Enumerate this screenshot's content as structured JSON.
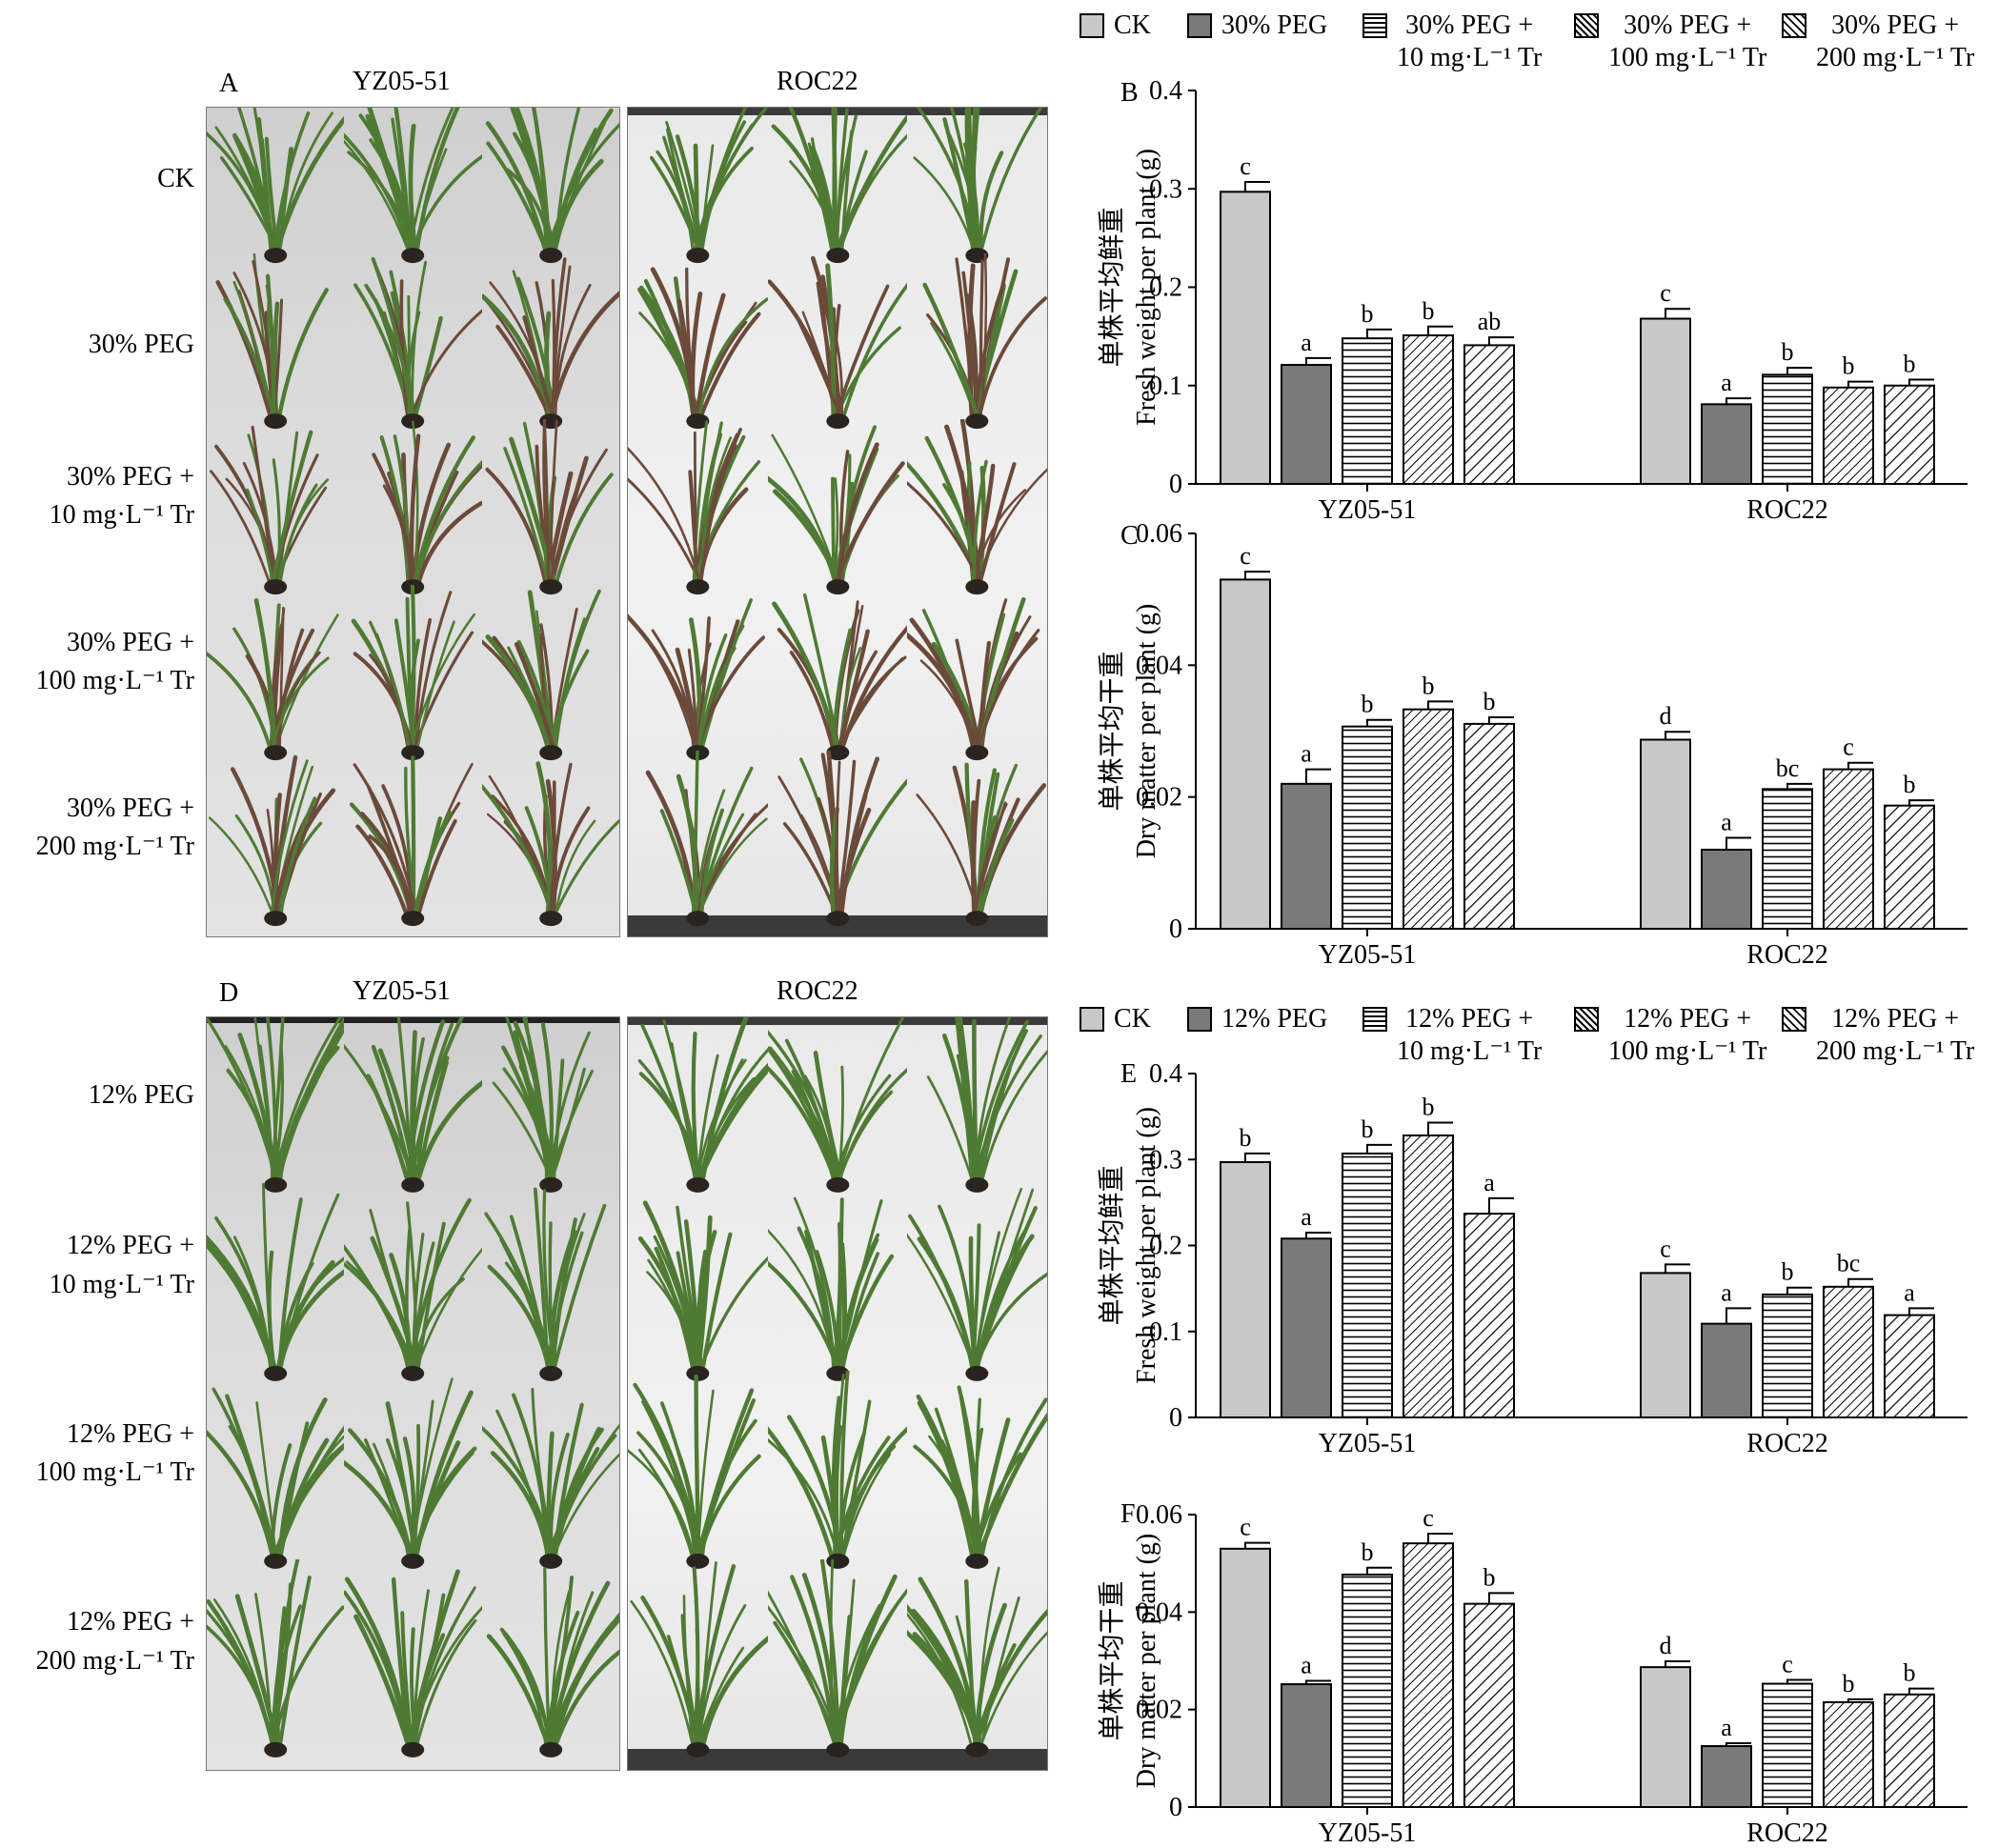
{
  "photos": {
    "top": {
      "panel_letter": "A",
      "col_heads": [
        "YZ05-51",
        "ROC22"
      ],
      "row_labels": [
        [
          "CK"
        ],
        [
          "30% PEG"
        ],
        [
          "30% PEG +",
          "10 mg·L⁻¹ Tr"
        ],
        [
          "30% PEG +",
          "100 mg·L⁻¹ Tr"
        ],
        [
          "30% PEG +",
          "200 mg·L⁻¹ Tr"
        ]
      ]
    },
    "bottom": {
      "panel_letter": "D",
      "col_heads": [
        "YZ05-51",
        "ROC22"
      ],
      "row_labels": [
        [
          "12% PEG"
        ],
        [
          "12% PEG +",
          "10 mg·L⁻¹ Tr"
        ],
        [
          "12% PEG +",
          "100 mg·L⁻¹ Tr"
        ],
        [
          "12% PEG +",
          "200 mg·L⁻¹ Tr"
        ]
      ]
    }
  },
  "legends": {
    "top": [
      [
        "CK"
      ],
      [
        "30% PEG"
      ],
      [
        "30% PEG +",
        "10 mg·L⁻¹ Tr"
      ],
      [
        "30% PEG +",
        "100 mg·L⁻¹ Tr"
      ],
      [
        "30% PEG +",
        "200 mg·L⁻¹ Tr"
      ]
    ],
    "bottom": [
      [
        "CK"
      ],
      [
        "12% PEG"
      ],
      [
        "12% PEG +",
        "10 mg·L⁻¹ Tr"
      ],
      [
        "12% PEG +",
        "100 mg·L⁻¹ Tr"
      ],
      [
        "12% PEG +",
        "200 mg·L⁻¹ Tr"
      ]
    ]
  },
  "colors": {
    "ck": "#c8c8c8",
    "peg": "#7a7a7a",
    "pattern": "#ffffff",
    "plant_green": "#4f7a34",
    "plant_dark": "#6b4a3a"
  },
  "chart_data": [
    {
      "panel": "B",
      "type": "bar",
      "categories": [
        "YZ05-51",
        "ROC22"
      ],
      "ylabel_cn": "单株平均鲜重",
      "ylabel_en": "Fresh weight per plant (g)",
      "ylim": [
        0,
        0.4
      ],
      "yticks": [
        "0",
        "0.1",
        "0.2",
        "0.3",
        "0.4"
      ],
      "series": [
        {
          "name": "CK",
          "values": [
            0.297,
            0.168
          ],
          "errors": [
            0.01,
            0.01
          ],
          "letters": [
            "c",
            "c"
          ]
        },
        {
          "name": "30% PEG",
          "values": [
            0.121,
            0.081
          ],
          "errors": [
            0.007,
            0.006
          ],
          "letters": [
            "a",
            "a"
          ]
        },
        {
          "name": "30% PEG + 10 mg·L⁻¹ Tr",
          "values": [
            0.148,
            0.111
          ],
          "errors": [
            0.009,
            0.007
          ],
          "letters": [
            "b",
            "b"
          ]
        },
        {
          "name": "30% PEG + 100 mg·L⁻¹ Tr",
          "values": [
            0.151,
            0.098
          ],
          "errors": [
            0.009,
            0.006
          ],
          "letters": [
            "b",
            "b"
          ]
        },
        {
          "name": "30% PEG + 200 mg·L⁻¹ Tr",
          "values": [
            0.141,
            0.1
          ],
          "errors": [
            0.008,
            0.006
          ],
          "letters": [
            "ab",
            "b"
          ]
        }
      ]
    },
    {
      "panel": "C",
      "type": "bar",
      "categories": [
        "YZ05-51",
        "ROC22"
      ],
      "ylabel_cn": "单株平均干重",
      "ylabel_en": "Dry matter per plant (g)",
      "ylim": [
        0,
        0.06
      ],
      "yticks": [
        "0",
        "0.02",
        "0.04",
        "0.06"
      ],
      "series": [
        {
          "name": "CK",
          "values": [
            0.053,
            0.0287
          ],
          "errors": [
            0.0012,
            0.0012
          ],
          "letters": [
            "c",
            "d"
          ]
        },
        {
          "name": "30% PEG",
          "values": [
            0.022,
            0.012
          ],
          "errors": [
            0.0022,
            0.0018
          ],
          "letters": [
            "a",
            "a"
          ]
        },
        {
          "name": "30% PEG + 10 mg·L⁻¹ Tr",
          "values": [
            0.0307,
            0.0212
          ],
          "errors": [
            0.001,
            0.0008
          ],
          "letters": [
            "b",
            "bc"
          ]
        },
        {
          "name": "30% PEG + 100 mg·L⁻¹ Tr",
          "values": [
            0.0333,
            0.0242
          ],
          "errors": [
            0.0012,
            0.001
          ],
          "letters": [
            "b",
            "c"
          ]
        },
        {
          "name": "30% PEG + 200 mg·L⁻¹ Tr",
          "values": [
            0.0311,
            0.0187
          ],
          "errors": [
            0.001,
            0.0008
          ],
          "letters": [
            "b",
            "b"
          ]
        }
      ]
    },
    {
      "panel": "E",
      "type": "bar",
      "categories": [
        "YZ05-51",
        "ROC22"
      ],
      "ylabel_cn": "单株平均鲜重",
      "ylabel_en": "Fresh weight per plant (g)",
      "ylim": [
        0,
        0.4
      ],
      "yticks": [
        "0",
        "0.1",
        "0.2",
        "0.3",
        "0.4"
      ],
      "series": [
        {
          "name": "CK",
          "values": [
            0.297,
            0.168
          ],
          "errors": [
            0.01,
            0.01
          ],
          "letters": [
            "b",
            "c"
          ]
        },
        {
          "name": "12% PEG",
          "values": [
            0.208,
            0.109
          ],
          "errors": [
            0.007,
            0.018
          ],
          "letters": [
            "a",
            "a"
          ]
        },
        {
          "name": "12% PEG + 10 mg·L⁻¹ Tr",
          "values": [
            0.307,
            0.143
          ],
          "errors": [
            0.01,
            0.008
          ],
          "letters": [
            "b",
            "b"
          ]
        },
        {
          "name": "12% PEG + 100 mg·L⁻¹ Tr",
          "values": [
            0.328,
            0.152
          ],
          "errors": [
            0.015,
            0.009
          ],
          "letters": [
            "b",
            "bc"
          ]
        },
        {
          "name": "12% PEG + 200 mg·L⁻¹ Tr",
          "values": [
            0.237,
            0.119
          ],
          "errors": [
            0.018,
            0.008
          ],
          "letters": [
            "a",
            "a"
          ]
        }
      ]
    },
    {
      "panel": "F",
      "type": "bar",
      "categories": [
        "YZ05-51",
        "ROC22"
      ],
      "ylabel_cn": "单株平均干重",
      "ylabel_en": "Dry matter per plant (g)",
      "ylim": [
        0,
        0.06
      ],
      "yticks": [
        "0",
        "0.02",
        "0.04",
        "0.06"
      ],
      "series": [
        {
          "name": "CK",
          "values": [
            0.053,
            0.0287
          ],
          "errors": [
            0.0012,
            0.0012
          ],
          "letters": [
            "c",
            "d"
          ]
        },
        {
          "name": "12% PEG",
          "values": [
            0.0252,
            0.0125
          ],
          "errors": [
            0.0007,
            0.0006
          ],
          "letters": [
            "a",
            "a"
          ]
        },
        {
          "name": "12% PEG + 10 mg·L⁻¹ Tr",
          "values": [
            0.0477,
            0.0253
          ],
          "errors": [
            0.0014,
            0.0008
          ],
          "letters": [
            "b",
            "c"
          ]
        },
        {
          "name": "12% PEG + 100 mg·L⁻¹ Tr",
          "values": [
            0.0541,
            0.0215
          ],
          "errors": [
            0.002,
            0.0006
          ],
          "letters": [
            "c",
            "b"
          ]
        },
        {
          "name": "12% PEG + 200 mg·L⁻¹ Tr",
          "values": [
            0.0417,
            0.0231
          ],
          "errors": [
            0.0022,
            0.0012
          ],
          "letters": [
            "b",
            "b"
          ]
        }
      ]
    }
  ]
}
